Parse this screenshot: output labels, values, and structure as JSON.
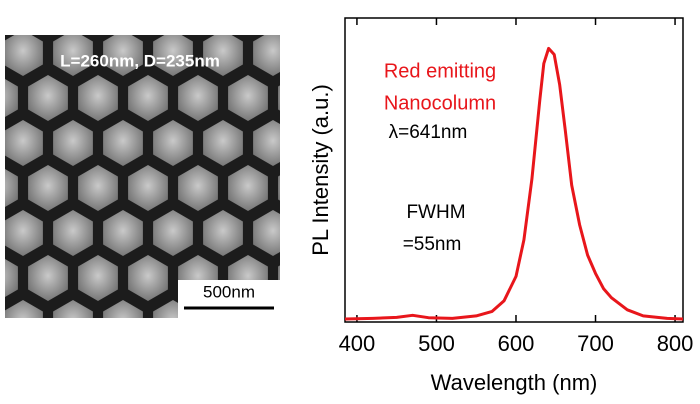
{
  "image": {
    "label": "L=260nm, D=235nm",
    "scale_bar": "500nm"
  },
  "chart_data": {
    "type": "line",
    "xlabel": "Wavelength (nm)",
    "ylabel": "PL Intensity (a.u.)",
    "x": [
      385,
      420,
      450,
      470,
      490,
      520,
      550,
      570,
      585,
      600,
      610,
      620,
      630,
      635,
      641,
      648,
      655,
      662,
      670,
      680,
      690,
      700,
      710,
      720,
      740,
      760,
      790,
      810
    ],
    "values": [
      0.01,
      0.012,
      0.015,
      0.022,
      0.014,
      0.012,
      0.02,
      0.035,
      0.07,
      0.15,
      0.27,
      0.47,
      0.73,
      0.85,
      0.9,
      0.88,
      0.78,
      0.63,
      0.45,
      0.32,
      0.22,
      0.16,
      0.11,
      0.08,
      0.04,
      0.02,
      0.012,
      0.01
    ],
    "color": "#e8161b",
    "xlim": [
      385,
      810
    ],
    "xticks": [
      400,
      500,
      600,
      700,
      800
    ],
    "ylim": [
      0,
      1
    ],
    "annotations": [
      {
        "text": "Red emitting",
        "color": "#e8161b"
      },
      {
        "text": "Nanocolumn",
        "color": "#e8161b"
      },
      {
        "text": "λ=641nm",
        "color": "#000000"
      },
      {
        "text": "FWHM",
        "color": "#000000"
      },
      {
        "text": "=55nm",
        "color": "#000000"
      }
    ]
  }
}
